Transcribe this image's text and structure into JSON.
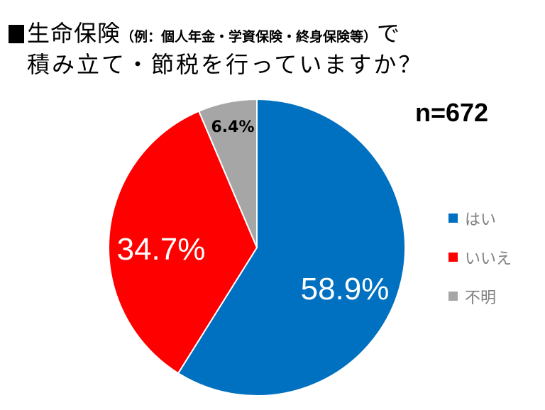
{
  "title": {
    "marker": "■",
    "line1_main": "生命保険",
    "line1_paren": "（例：個人年金・学資保険・終身保険等）",
    "line1_tail": "で",
    "line2": "積み立て・節税を行っていますか？"
  },
  "sample_size": "n=672",
  "legend": [
    {
      "label": "はい",
      "color": "#0070c0"
    },
    {
      "label": "いいえ",
      "color": "#ff0000"
    },
    {
      "label": "不明",
      "color": "#a6a6a6"
    }
  ],
  "labels": {
    "yes": "58.9%",
    "no": "34.7%",
    "unknown": "6.4%"
  },
  "chart_data": {
    "type": "pie",
    "title": "■生命保険（例：個人年金・学資保険・終身保険等）で積み立て・節税を行っていますか？",
    "annotation": "n=672",
    "categories": [
      "はい",
      "いいえ",
      "不明"
    ],
    "values": [
      58.9,
      34.7,
      6.4
    ],
    "unit": "%",
    "colors": [
      "#0070c0",
      "#ff0000",
      "#a6a6a6"
    ],
    "start_angle": "12 o'clock, clockwise",
    "legend_position": "right",
    "sample_size": 672
  }
}
